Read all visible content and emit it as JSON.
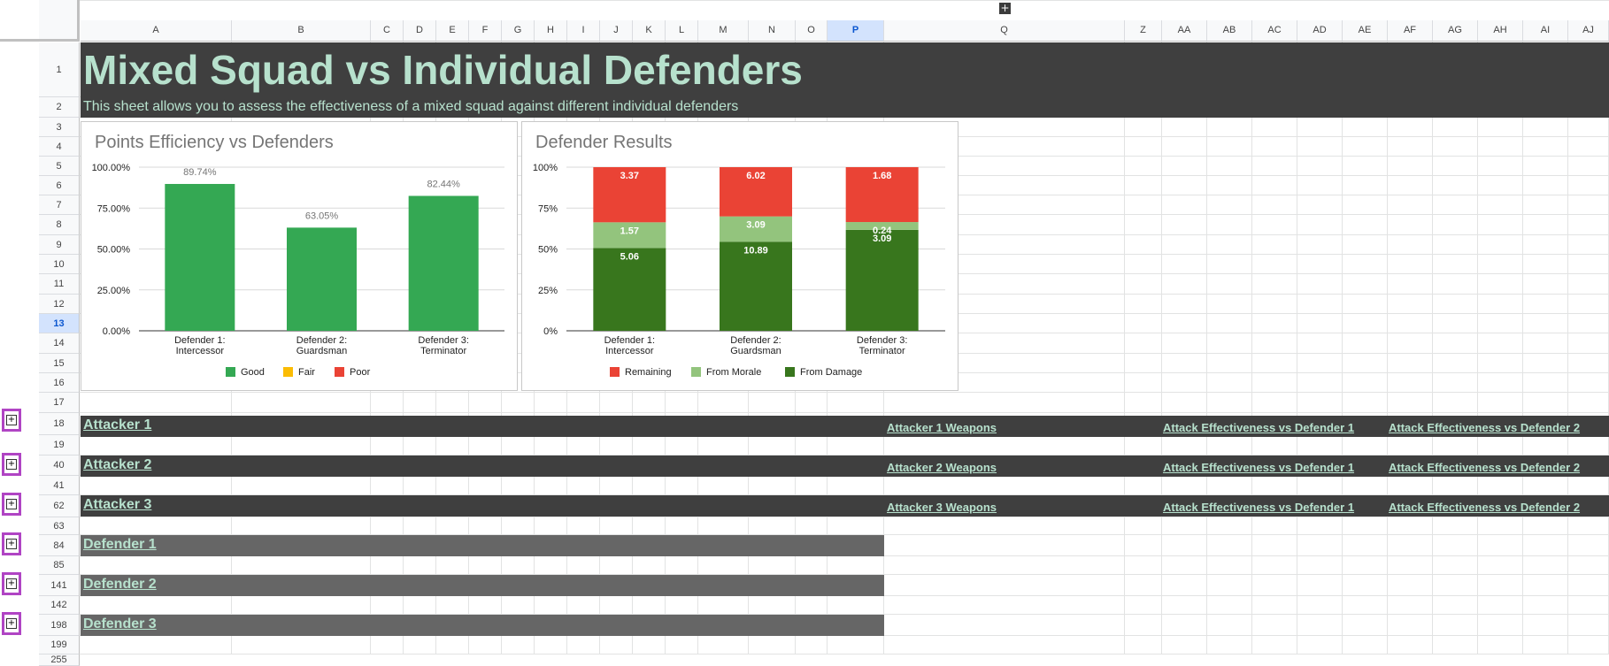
{
  "top_toggle_icon": "plus-icon",
  "columns": [
    "A",
    "B",
    "C",
    "D",
    "E",
    "F",
    "G",
    "H",
    "I",
    "J",
    "K",
    "L",
    "M",
    "N",
    "O",
    "P",
    "Q",
    "Z",
    "AA",
    "AB",
    "AC",
    "AD",
    "AE",
    "AF",
    "AG",
    "AH",
    "AI",
    "AJ"
  ],
  "selected_column": "P",
  "rows": [
    "1",
    "2",
    "3",
    "4",
    "5",
    "6",
    "7",
    "8",
    "9",
    "10",
    "11",
    "12",
    "13",
    "14",
    "15",
    "16",
    "17",
    "18",
    "19",
    "40",
    "41",
    "62",
    "63",
    "84",
    "85",
    "141",
    "142",
    "198",
    "199",
    "255"
  ],
  "selected_row": "13",
  "title": "Mixed Squad vs Individual Defenders",
  "subtitle": "This sheet allows you to assess the effectiveness of a mixed squad against different individual defenders",
  "sections": {
    "attacker1": {
      "label": "Attacker 1",
      "weapons": "Attacker 1 Weapons",
      "eff1": "Attack Effectiveness vs Defender 1",
      "eff2": "Attack Effectiveness vs Defender 2"
    },
    "attacker2": {
      "label": "Attacker 2",
      "weapons": "Attacker 2 Weapons",
      "eff1": "Attack Effectiveness vs Defender 1",
      "eff2": "Attack Effectiveness vs Defender 2"
    },
    "attacker3": {
      "label": "Attacker 3",
      "weapons": "Attacker 3 Weapons",
      "eff1": "Attack Effectiveness vs Defender 1",
      "eff2": "Attack Effectiveness vs Defender 2"
    },
    "defender1": {
      "label": "Defender 1"
    },
    "defender2": {
      "label": "Defender 2"
    },
    "defender3": {
      "label": "Defender 3"
    }
  },
  "group_toggle_icon": "plus-icon",
  "colors": {
    "header_bg": "#3f3f3f",
    "title_text": "#b7e1cd",
    "defender_bar": "#666666",
    "good": "#34a853",
    "fair": "#fbbc04",
    "poor": "#ea4335",
    "remaining": "#ea4335",
    "from_morale": "#93c47d",
    "from_damage": "#38761d"
  },
  "chart_data": [
    {
      "type": "bar",
      "title": "Points Efficiency vs Defenders",
      "categories": [
        [
          "Defender 1:",
          "Intercessor"
        ],
        [
          "Defender 2:",
          "Guardsman"
        ],
        [
          "Defender 3:",
          "Terminator"
        ]
      ],
      "values": [
        89.74,
        63.05,
        82.44
      ],
      "data_labels": [
        "89.74%",
        "63.05%",
        "82.44%"
      ],
      "ylim": [
        0,
        100
      ],
      "yticks": [
        "0.00%",
        "25.00%",
        "50.00%",
        "75.00%",
        "100.00%"
      ],
      "legend": [
        "Good",
        "Fair",
        "Poor"
      ],
      "legend_colors": [
        "#34a853",
        "#fbbc04",
        "#ea4335"
      ],
      "legend_position": "bottom",
      "grid": true
    },
    {
      "type": "bar",
      "stacked": "percent",
      "title": "Defender Results",
      "categories": [
        [
          "Defender 1:",
          "Intercessor"
        ],
        [
          "Defender 2:",
          "Guardsman"
        ],
        [
          "Defender 3:",
          "Terminator"
        ]
      ],
      "series": [
        {
          "name": "From Damage",
          "values": [
            5.06,
            10.89,
            3.09
          ],
          "color": "#38761d"
        },
        {
          "name": "From Morale",
          "values": [
            1.57,
            3.09,
            0.24
          ],
          "color": "#93c47d"
        },
        {
          "name": "Remaining",
          "values": [
            3.37,
            6.02,
            1.68
          ],
          "color": "#ea4335"
        }
      ],
      "yticks": [
        "0%",
        "25%",
        "50%",
        "75%",
        "100%"
      ],
      "legend": [
        "Remaining",
        "From Morale",
        "From Damage"
      ],
      "legend_colors": [
        "#ea4335",
        "#93c47d",
        "#38761d"
      ],
      "legend_position": "bottom",
      "grid": true
    }
  ]
}
